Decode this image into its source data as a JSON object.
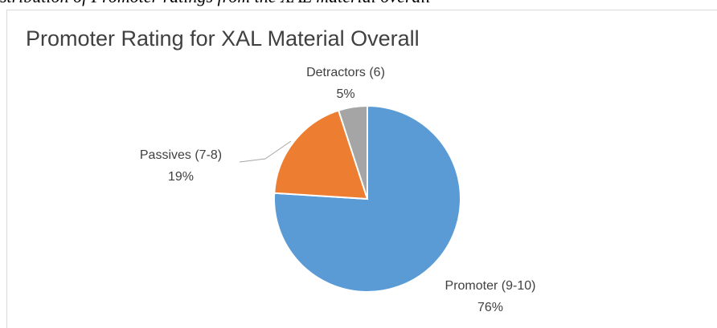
{
  "caption": "stribution of Promoter ratings from the XAL material overall",
  "chart_data": {
    "type": "pie",
    "title": "Promoter Rating for XAL Material Overall",
    "categories": [
      "Promoter (9-10)",
      "Passives (7-8)",
      "Detractors (6)"
    ],
    "values": [
      76,
      19,
      5
    ],
    "value_labels": [
      "76%",
      "19%",
      "5%"
    ],
    "colors": [
      "#5b9bd5",
      "#ed7d31",
      "#a5a5a5"
    ]
  }
}
